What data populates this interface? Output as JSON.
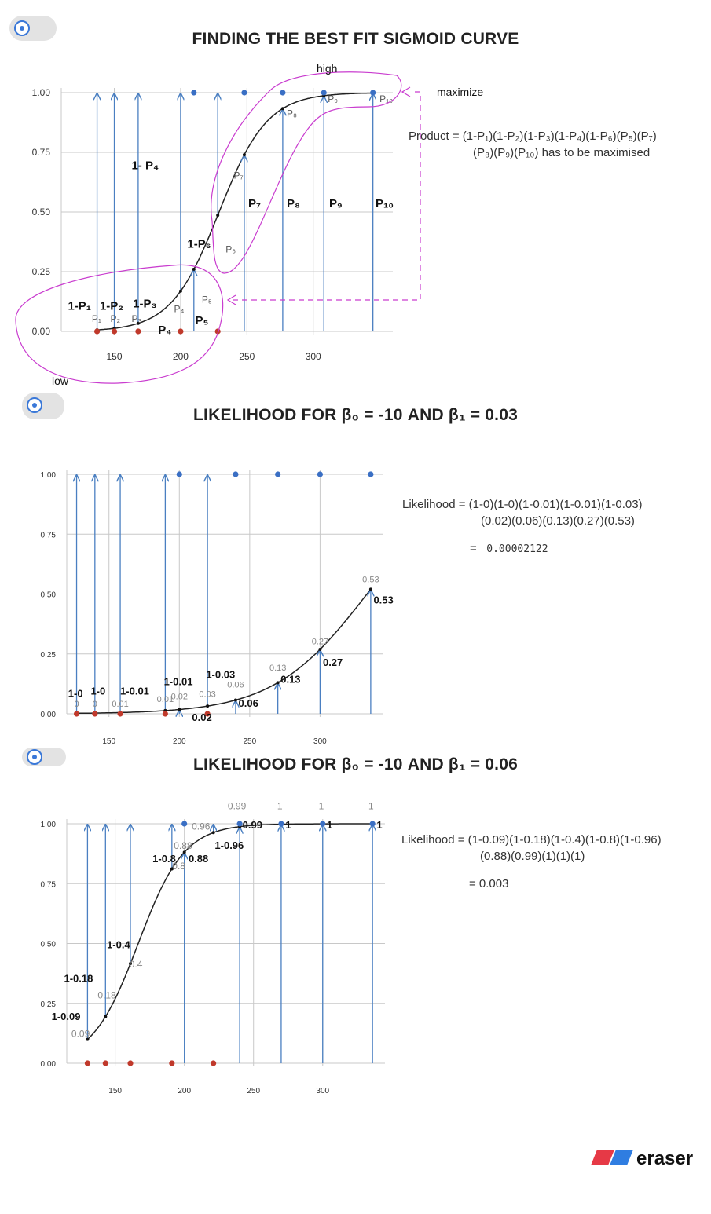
{
  "colors": {
    "arrow": "#4a7fc1",
    "blue_dot": "#3a6fc4",
    "red_dot": "#c0392b",
    "curve": "#222222",
    "grid": "#c8c8c8",
    "annot": "#c93ccf",
    "dash": "#c93ccf"
  },
  "chart_data": [
    {
      "type": "scatter",
      "title": "FINDING THE BEST FIT SIGMOID CURVE",
      "xlim": [
        110,
        360
      ],
      "ylim": [
        0,
        1
      ],
      "x_ticks": [
        150,
        200,
        250,
        300
      ],
      "y_ticks": [
        "0.00",
        "0.25",
        "0.50",
        "0.75",
        "1.00"
      ],
      "grid": true,
      "class0_points": [
        [
          137,
          0
        ],
        [
          150,
          0
        ],
        [
          168,
          0
        ],
        [
          200,
          0
        ],
        [
          228,
          0
        ]
      ],
      "class1_points": [
        [
          210,
          1
        ],
        [
          248,
          1
        ],
        [
          277,
          1
        ],
        [
          308,
          1
        ],
        [
          345,
          1
        ]
      ],
      "curve": {
        "model": "sigmoid",
        "x0": 229,
        "k": 0.055
      },
      "arrows_down": [
        137,
        150,
        168,
        200,
        228
      ],
      "arrows_up": [
        210,
        248,
        277,
        308,
        345
      ],
      "small_labels": [
        {
          "t": "P₁",
          "x": 133,
          "y": 0.04
        },
        {
          "t": "P₂",
          "x": 147,
          "y": 0.04
        },
        {
          "t": "P₃",
          "x": 163,
          "y": 0.04
        },
        {
          "t": "P₄",
          "x": 195,
          "y": 0.08
        },
        {
          "t": "P₅",
          "x": 216,
          "y": 0.12
        },
        {
          "t": "P₆",
          "x": 234,
          "y": 0.33
        },
        {
          "t": "P₇",
          "x": 240,
          "y": 0.64
        },
        {
          "t": "P₈",
          "x": 280,
          "y": 0.9
        },
        {
          "t": "P₉",
          "x": 311,
          "y": 0.96
        },
        {
          "t": "P₁₀",
          "x": 350,
          "y": 0.96
        }
      ],
      "bold_labels": [
        {
          "t": "1-P₁",
          "x": 115,
          "y": 0.09
        },
        {
          "t": "1-P₂",
          "x": 139,
          "y": 0.09
        },
        {
          "t": "1-P₃",
          "x": 164,
          "y": 0.1
        },
        {
          "t": "1- P₄",
          "x": 163,
          "y": 0.68
        },
        {
          "t": "1-P₆",
          "x": 205,
          "y": 0.35
        },
        {
          "t": "P₄",
          "x": 183,
          "y": -0.01
        },
        {
          "t": "P₅",
          "x": 211,
          "y": 0.03
        },
        {
          "t": "P₇",
          "x": 251,
          "y": 0.52
        },
        {
          "t": "P₈",
          "x": 280,
          "y": 0.52
        },
        {
          "t": "P₉",
          "x": 312,
          "y": 0.52
        },
        {
          "t": "P₁₀",
          "x": 347,
          "y": 0.52
        }
      ],
      "annotations": {
        "high": "high",
        "low": "low",
        "maximize": "maximize"
      },
      "formula_line1": "Product = (1-P₁)(1-P₂)(1-P₃)(1-P₄)(1-P₆)(P₅)(P₇)",
      "formula_line2": "(P₈)(P₉)(P₁₀) has to be maximised"
    },
    {
      "type": "scatter",
      "title": "LIKELIHOOD FOR β₀ = -10 AND β₁ = 0.03",
      "xlim": [
        120,
        345
      ],
      "ylim": [
        0,
        1
      ],
      "x_ticks": [
        150,
        200,
        250,
        300
      ],
      "y_ticks": [
        "0.00",
        "0.25",
        "0.50",
        "0.75",
        "1.00"
      ],
      "grid": true,
      "class0_points": [
        [
          127,
          0
        ],
        [
          140,
          0
        ],
        [
          158,
          0
        ],
        [
          190,
          0
        ],
        [
          220,
          0
        ]
      ],
      "class1_points": [
        [
          200,
          1
        ],
        [
          240,
          1
        ],
        [
          270,
          1
        ],
        [
          300,
          1
        ],
        [
          336,
          1
        ]
      ],
      "curve": {
        "model": "sigmoid",
        "b0": -10,
        "b1": 0.03
      },
      "arrows_down": [
        127,
        140,
        158,
        190,
        220
      ],
      "arrows_up": [
        200,
        240,
        270,
        300,
        336
      ],
      "grey_labels": [
        {
          "t": "0",
          "x": 127,
          "y": 0.03
        },
        {
          "t": "0",
          "x": 140,
          "y": 0.03
        },
        {
          "t": "0.01",
          "x": 158,
          "y": 0.03
        },
        {
          "t": "0.01",
          "x": 190,
          "y": 0.05
        },
        {
          "t": "0.02",
          "x": 200,
          "y": 0.06
        },
        {
          "t": "0.03",
          "x": 220,
          "y": 0.07
        },
        {
          "t": "0.06",
          "x": 240,
          "y": 0.11
        },
        {
          "t": "0.13",
          "x": 270,
          "y": 0.18
        },
        {
          "t": "0.27",
          "x": 300,
          "y": 0.29
        },
        {
          "t": "0.53",
          "x": 336,
          "y": 0.55
        }
      ],
      "bold_labels": [
        {
          "t": "1-0",
          "x": 121,
          "y": 0.07
        },
        {
          "t": "1-0",
          "x": 137,
          "y": 0.08
        },
        {
          "t": "1-0.01",
          "x": 158,
          "y": 0.08
        },
        {
          "t": "1-0.01",
          "x": 189,
          "y": 0.12
        },
        {
          "t": "1-0.03",
          "x": 219,
          "y": 0.15
        },
        {
          "t": "0.02",
          "x": 209,
          "y": -0.03
        },
        {
          "t": "0.06",
          "x": 242,
          "y": 0.03
        },
        {
          "t": "0.13",
          "x": 272,
          "y": 0.13
        },
        {
          "t": "0.27",
          "x": 302,
          "y": 0.2
        },
        {
          "t": "0.53",
          "x": 338,
          "y": 0.46
        }
      ],
      "formula_line1": "Likelihood = (1-0)(1-0)(1-0.01)(1-0.01)(1-0.03)",
      "formula_line2": "(0.02)(0.06)(0.13)(0.27)(0.53)",
      "result_eq": "=",
      "result": "0.00002122"
    },
    {
      "type": "scatter",
      "title": "LIKELIHOOD FOR β₀ = -10 AND β₁ = 0.06",
      "xlim": [
        115,
        345
      ],
      "ylim": [
        0,
        1
      ],
      "x_ticks": [
        150,
        200,
        250,
        300
      ],
      "y_ticks": [
        "0.00",
        "0.25",
        "0.50",
        "0.75",
        "1.00"
      ],
      "grid": true,
      "class0_points": [
        [
          130,
          0
        ],
        [
          143,
          0
        ],
        [
          161,
          0
        ],
        [
          191,
          0
        ],
        [
          221,
          0
        ]
      ],
      "class1_points": [
        [
          200,
          1
        ],
        [
          240,
          1
        ],
        [
          270,
          1
        ],
        [
          300,
          1
        ],
        [
          336,
          1
        ]
      ],
      "curve": {
        "model": "sigmoid",
        "b0": -10,
        "b1": 0.06
      },
      "arrows_down": [
        130,
        143,
        161,
        191,
        221
      ],
      "arrows_up": [
        200,
        240,
        270,
        300,
        336
      ],
      "grey_labels": [
        {
          "t": "0.09",
          "x": 125,
          "y": 0.11
        },
        {
          "t": "0.18",
          "x": 144,
          "y": 0.27
        },
        {
          "t": "0.4",
          "x": 165,
          "y": 0.4
        },
        {
          "t": "0.8",
          "x": 196,
          "y": 0.81
        },
        {
          "t": "0.88",
          "x": 199,
          "y": 0.895
        },
        {
          "t": "0.96",
          "x": 212,
          "y": 0.975
        },
        {
          "t": "0.99",
          "x": 238,
          "y": 1.06
        },
        {
          "t": "1",
          "x": 269,
          "y": 1.06
        },
        {
          "t": "1",
          "x": 299,
          "y": 1.06
        },
        {
          "t": "1",
          "x": 335,
          "y": 1.06
        }
      ],
      "bold_labels": [
        {
          "t": "1-0.09",
          "x": 104,
          "y": 0.18
        },
        {
          "t": "1-0.18",
          "x": 113,
          "y": 0.34
        },
        {
          "t": "1-0.4",
          "x": 144,
          "y": 0.48
        },
        {
          "t": "1-0.8",
          "x": 177,
          "y": 0.84
        },
        {
          "t": "1-0.96",
          "x": 222,
          "y": 0.895
        },
        {
          "t": "0.88",
          "x": 203,
          "y": 0.84
        },
        {
          "t": "0.99",
          "x": 242,
          "y": 0.98
        },
        {
          "t": "1",
          "x": 273,
          "y": 0.98
        },
        {
          "t": "1",
          "x": 303,
          "y": 0.98
        },
        {
          "t": "1",
          "x": 339,
          "y": 0.98
        }
      ],
      "formula_line1": "Likelihood = (1-0.09)(1-0.18)(1-0.4)(1-0.8)(1-0.96)",
      "formula_line2": "(0.88)(0.99)(1)(1)(1)",
      "result": "= 0.003"
    }
  ],
  "logo_text": "eraser"
}
